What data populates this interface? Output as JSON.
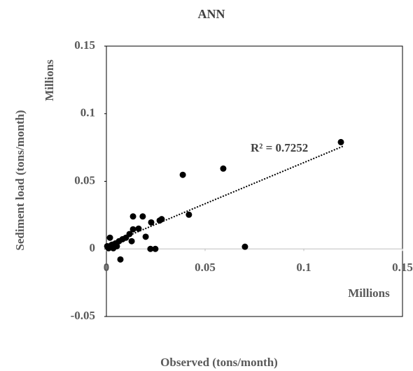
{
  "chart_data": {
    "type": "scatter",
    "title": "ANN",
    "x_label": "Observed (tons/month)",
    "y_label": "Sediment load (tons/month)",
    "x_unit": "Millions",
    "y_unit": "Millions",
    "annotation": "R² = 0.7252",
    "xlim": [
      0,
      0.15
    ],
    "xticks": [
      0,
      0.05,
      0.1,
      0.15
    ],
    "ylim": [
      -0.05,
      0.15
    ],
    "yticks": [
      -0.05,
      0,
      0.05,
      0.1,
      0.15
    ],
    "color": "#000000",
    "x": [
      0.1188,
      0.0592,
      0.0387,
      0.0418,
      0.0702,
      0.0135,
      0.0184,
      0.027,
      0.028,
      0.0227,
      0.0163,
      0.0135,
      0.0199,
      0.0223,
      0.0248,
      0.0071,
      0.0117,
      0.0099,
      0.0082,
      0.0064,
      0.0046,
      0.0028,
      0.0018,
      0.0011,
      0.0004,
      0.0035,
      0.0053,
      0.0128
    ],
    "y": [
      0.079,
      0.0594,
      0.0548,
      0.0253,
      0.0016,
      0.024,
      0.024,
      0.021,
      0.022,
      0.0196,
      0.015,
      0.0145,
      0.009,
      0,
      0,
      -0.0078,
      0.011,
      0.0083,
      0.0072,
      0.0057,
      0.0041,
      0.0031,
      0.0083,
      0.0005,
      0.002,
      0.0005,
      0.002,
      0.0057
    ],
    "trendline": {
      "x": [
        0,
        0.12
      ],
      "y": [
        0.003,
        0.076
      ]
    }
  }
}
